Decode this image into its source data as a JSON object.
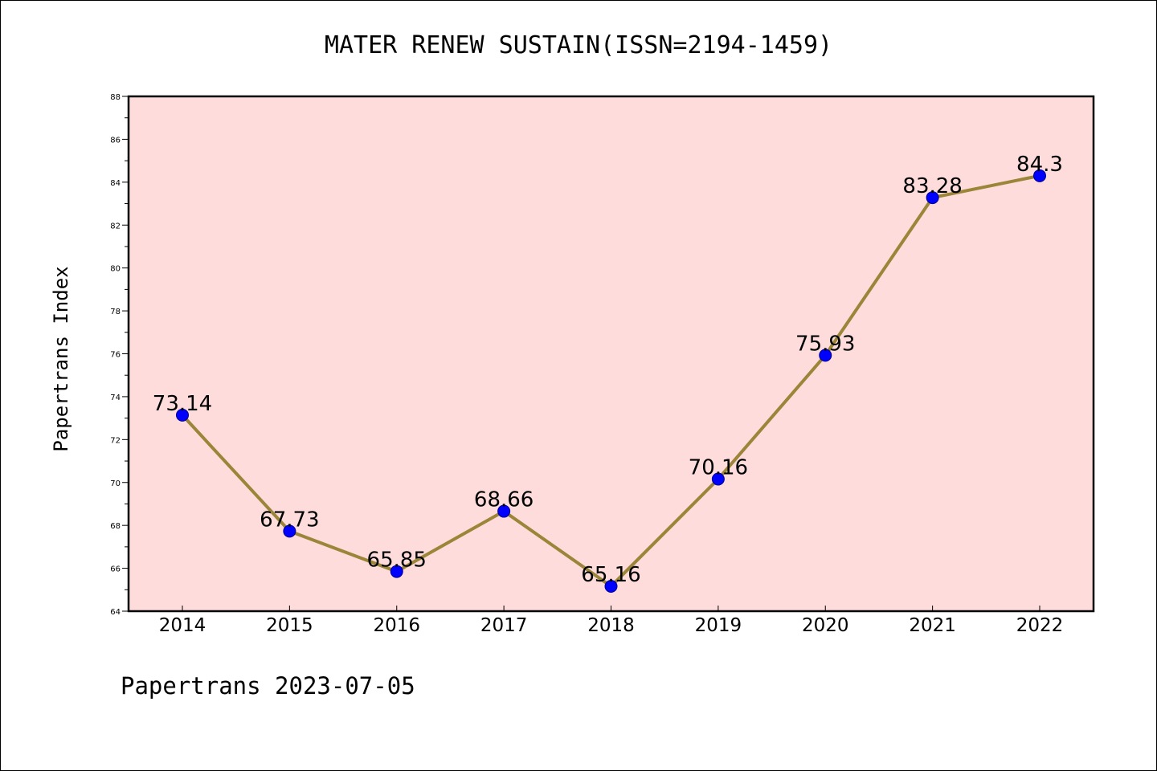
{
  "chart_data": {
    "type": "line",
    "title": "MATER RENEW SUSTAIN(ISSN=2194-1459)",
    "xlabel": "",
    "ylabel": "Papertrans Index",
    "categories": [
      "2014",
      "2015",
      "2016",
      "2017",
      "2018",
      "2019",
      "2020",
      "2021",
      "2022"
    ],
    "values": [
      73.14,
      67.73,
      65.85,
      68.66,
      65.16,
      70.16,
      75.93,
      83.28,
      84.3
    ],
    "data_labels": [
      "73.14",
      "67.73",
      "65.85",
      "68.66",
      "65.16",
      "70.16",
      "75.93",
      "83.28",
      "84.3"
    ],
    "ylim": [
      64,
      88
    ],
    "yticks": [
      64,
      66,
      68,
      70,
      72,
      74,
      76,
      78,
      80,
      82,
      84,
      86,
      88
    ],
    "grid": false,
    "colors": {
      "plot_background": "#fddcdb",
      "line": "#9a8538",
      "marker": "#0000ff"
    }
  },
  "footer": "Papertrans 2023-07-05"
}
